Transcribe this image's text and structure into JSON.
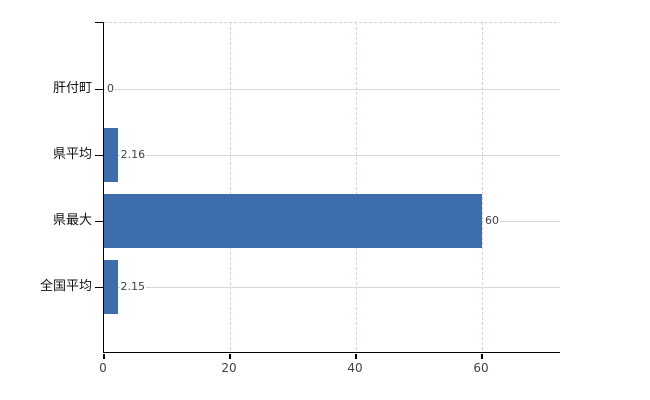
{
  "chart_data": {
    "type": "bar",
    "orientation": "horizontal",
    "title": "",
    "categories": [
      "肝付町",
      "県平均",
      "県最大",
      "全国平均"
    ],
    "values": [
      0,
      2.16,
      60,
      2.15
    ],
    "value_labels": [
      "0",
      "2.16",
      "60",
      "2.15"
    ],
    "x_ticks": [
      0,
      20,
      40,
      60
    ],
    "x_tick_labels": [
      "0",
      "20",
      "40",
      "60"
    ],
    "xlim": [
      0,
      72.4
    ],
    "grid": true,
    "legend": false,
    "colors": {
      "bar": "#3d6dac",
      "axis": "#000000",
      "grid_horizontal": "#d5d8d1",
      "grid_vertical": "#ddd2d2",
      "plot_border_top": "#d8d2d2",
      "category_label": "#111111",
      "value_label": "#3c434b",
      "tick_label": "#3c434b",
      "background": "#ffffff"
    }
  }
}
